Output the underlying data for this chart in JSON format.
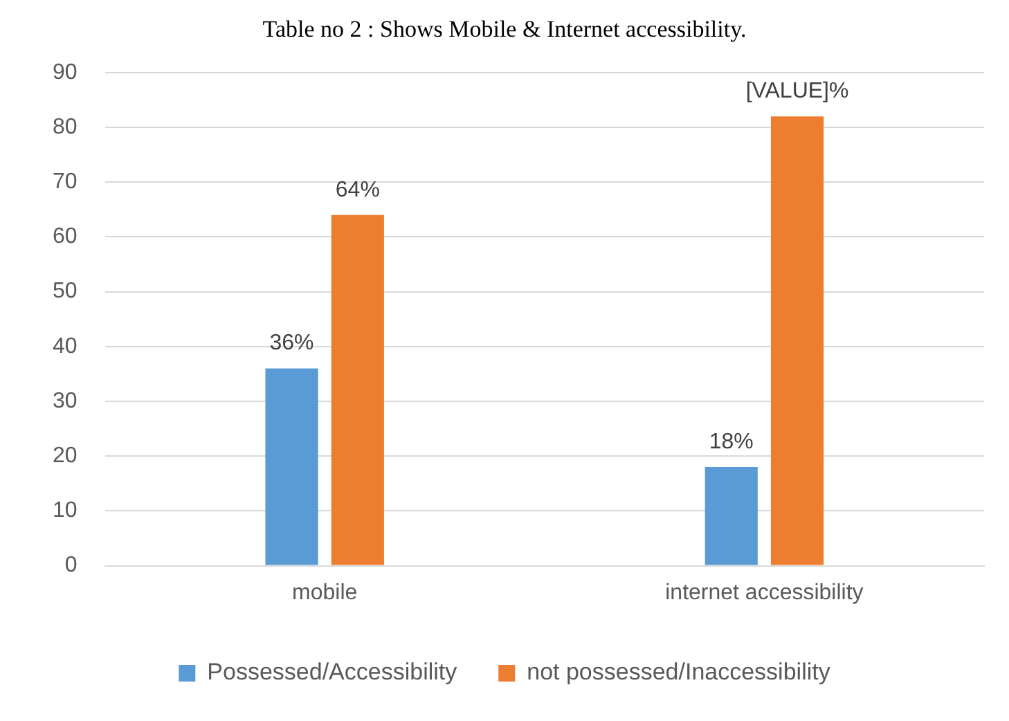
{
  "chart_data": {
    "type": "bar",
    "title": "Table no 2 : Shows Mobile & Internet accessibility.",
    "categories": [
      "mobile",
      "internet accessibility"
    ],
    "series": [
      {
        "name": "Possessed/Accessibility",
        "color": "#5b9bd5",
        "values": [
          36,
          18
        ],
        "value_labels": [
          "36%",
          "18%"
        ]
      },
      {
        "name": "not possessed/Inaccessibility",
        "color": "#ed7d31",
        "values": [
          64,
          82
        ],
        "value_labels": [
          "64%",
          "[VALUE]%"
        ]
      }
    ],
    "ylim": [
      0,
      90
    ],
    "yticks": [
      0,
      10,
      20,
      30,
      40,
      50,
      60,
      70,
      80,
      90
    ],
    "grid": "y",
    "legend": "bottom"
  }
}
